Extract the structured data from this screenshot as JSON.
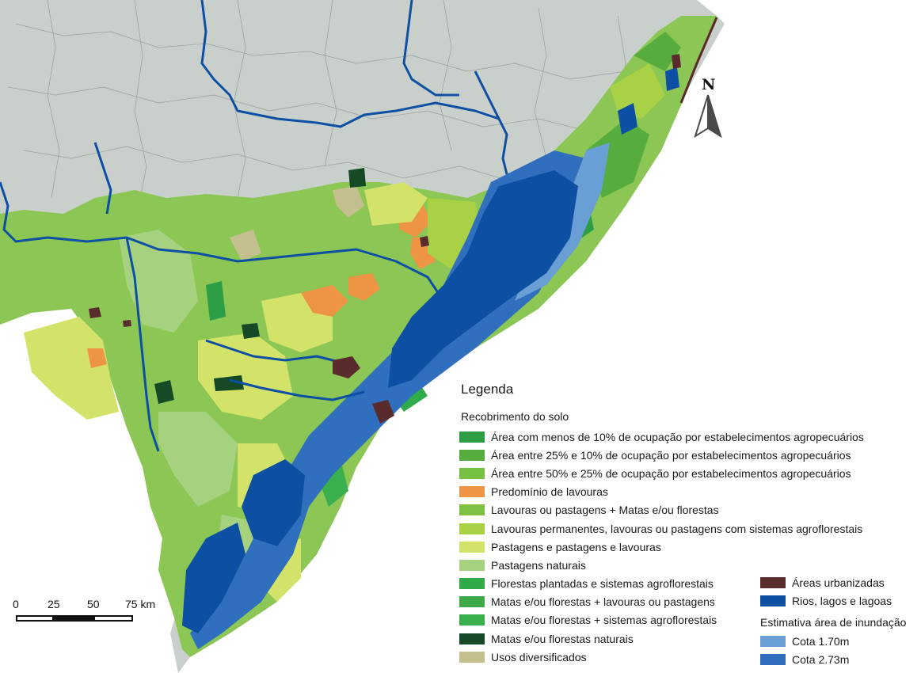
{
  "legend": {
    "title": "Legenda",
    "subtitle": "Recobrimento do solo",
    "land_cover": [
      {
        "label": "Área com menos de 10% de ocupação por estabelecimentos agropecuários",
        "color": "#2e9e46"
      },
      {
        "label": "Área entre 25% e 10% de ocupação por estabelecimentos agropecuários",
        "color": "#56ad3e"
      },
      {
        "label": "Área entre 50% e 25% de ocupação por estabelecimentos agropecuários",
        "color": "#76c044"
      },
      {
        "label": "Predomínio de lavouras",
        "color": "#ee9445"
      },
      {
        "label": "Lavouras ou pastagens + Matas e/ou florestas",
        "color": "#7ec242"
      },
      {
        "label": "Lavouras permanentes, lavouras ou pastagens com sistemas agroflorestais",
        "color": "#a9d146"
      },
      {
        "label": "Pastagens e pastagens e lavouras",
        "color": "#d3e36a"
      },
      {
        "label": "Pastagens naturais",
        "color": "#a6d17f"
      },
      {
        "label": "Florestas plantadas e sistemas agroflorestais",
        "color": "#2fab4a"
      },
      {
        "label": "Matas e/ou florestas + lavouras ou pastagens",
        "color": "#3ea94b"
      },
      {
        "label": "Matas e/ou florestas + sistemas agroflorestais",
        "color": "#3aaf4e"
      },
      {
        "label": "Matas e/ou florestas naturais",
        "color": "#164a27"
      },
      {
        "label": "Usos diversificados",
        "color": "#c3bf8e"
      }
    ],
    "other": [
      {
        "label": "Áreas urbanizadas",
        "color": "#5a2b2c"
      },
      {
        "label": "Rios, lagos e lagoas",
        "color": "#0d4fa3"
      }
    ],
    "flood_title": "Estimativa área de inundação",
    "flood": [
      {
        "label": "Cota 1.70m",
        "color": "#6a9fd6"
      },
      {
        "label": "Cota 2.73m",
        "color": "#2f6fbd"
      }
    ]
  },
  "scale_bar": {
    "labels": [
      "0",
      "25",
      "50",
      "75 km"
    ]
  },
  "north_arrow": {
    "label": "N",
    "icon": "north-arrow-icon"
  },
  "map": {
    "background_color": "#c9d0cb",
    "boundary_color": "#9aa19c",
    "river_color": "#0d4fa3"
  }
}
